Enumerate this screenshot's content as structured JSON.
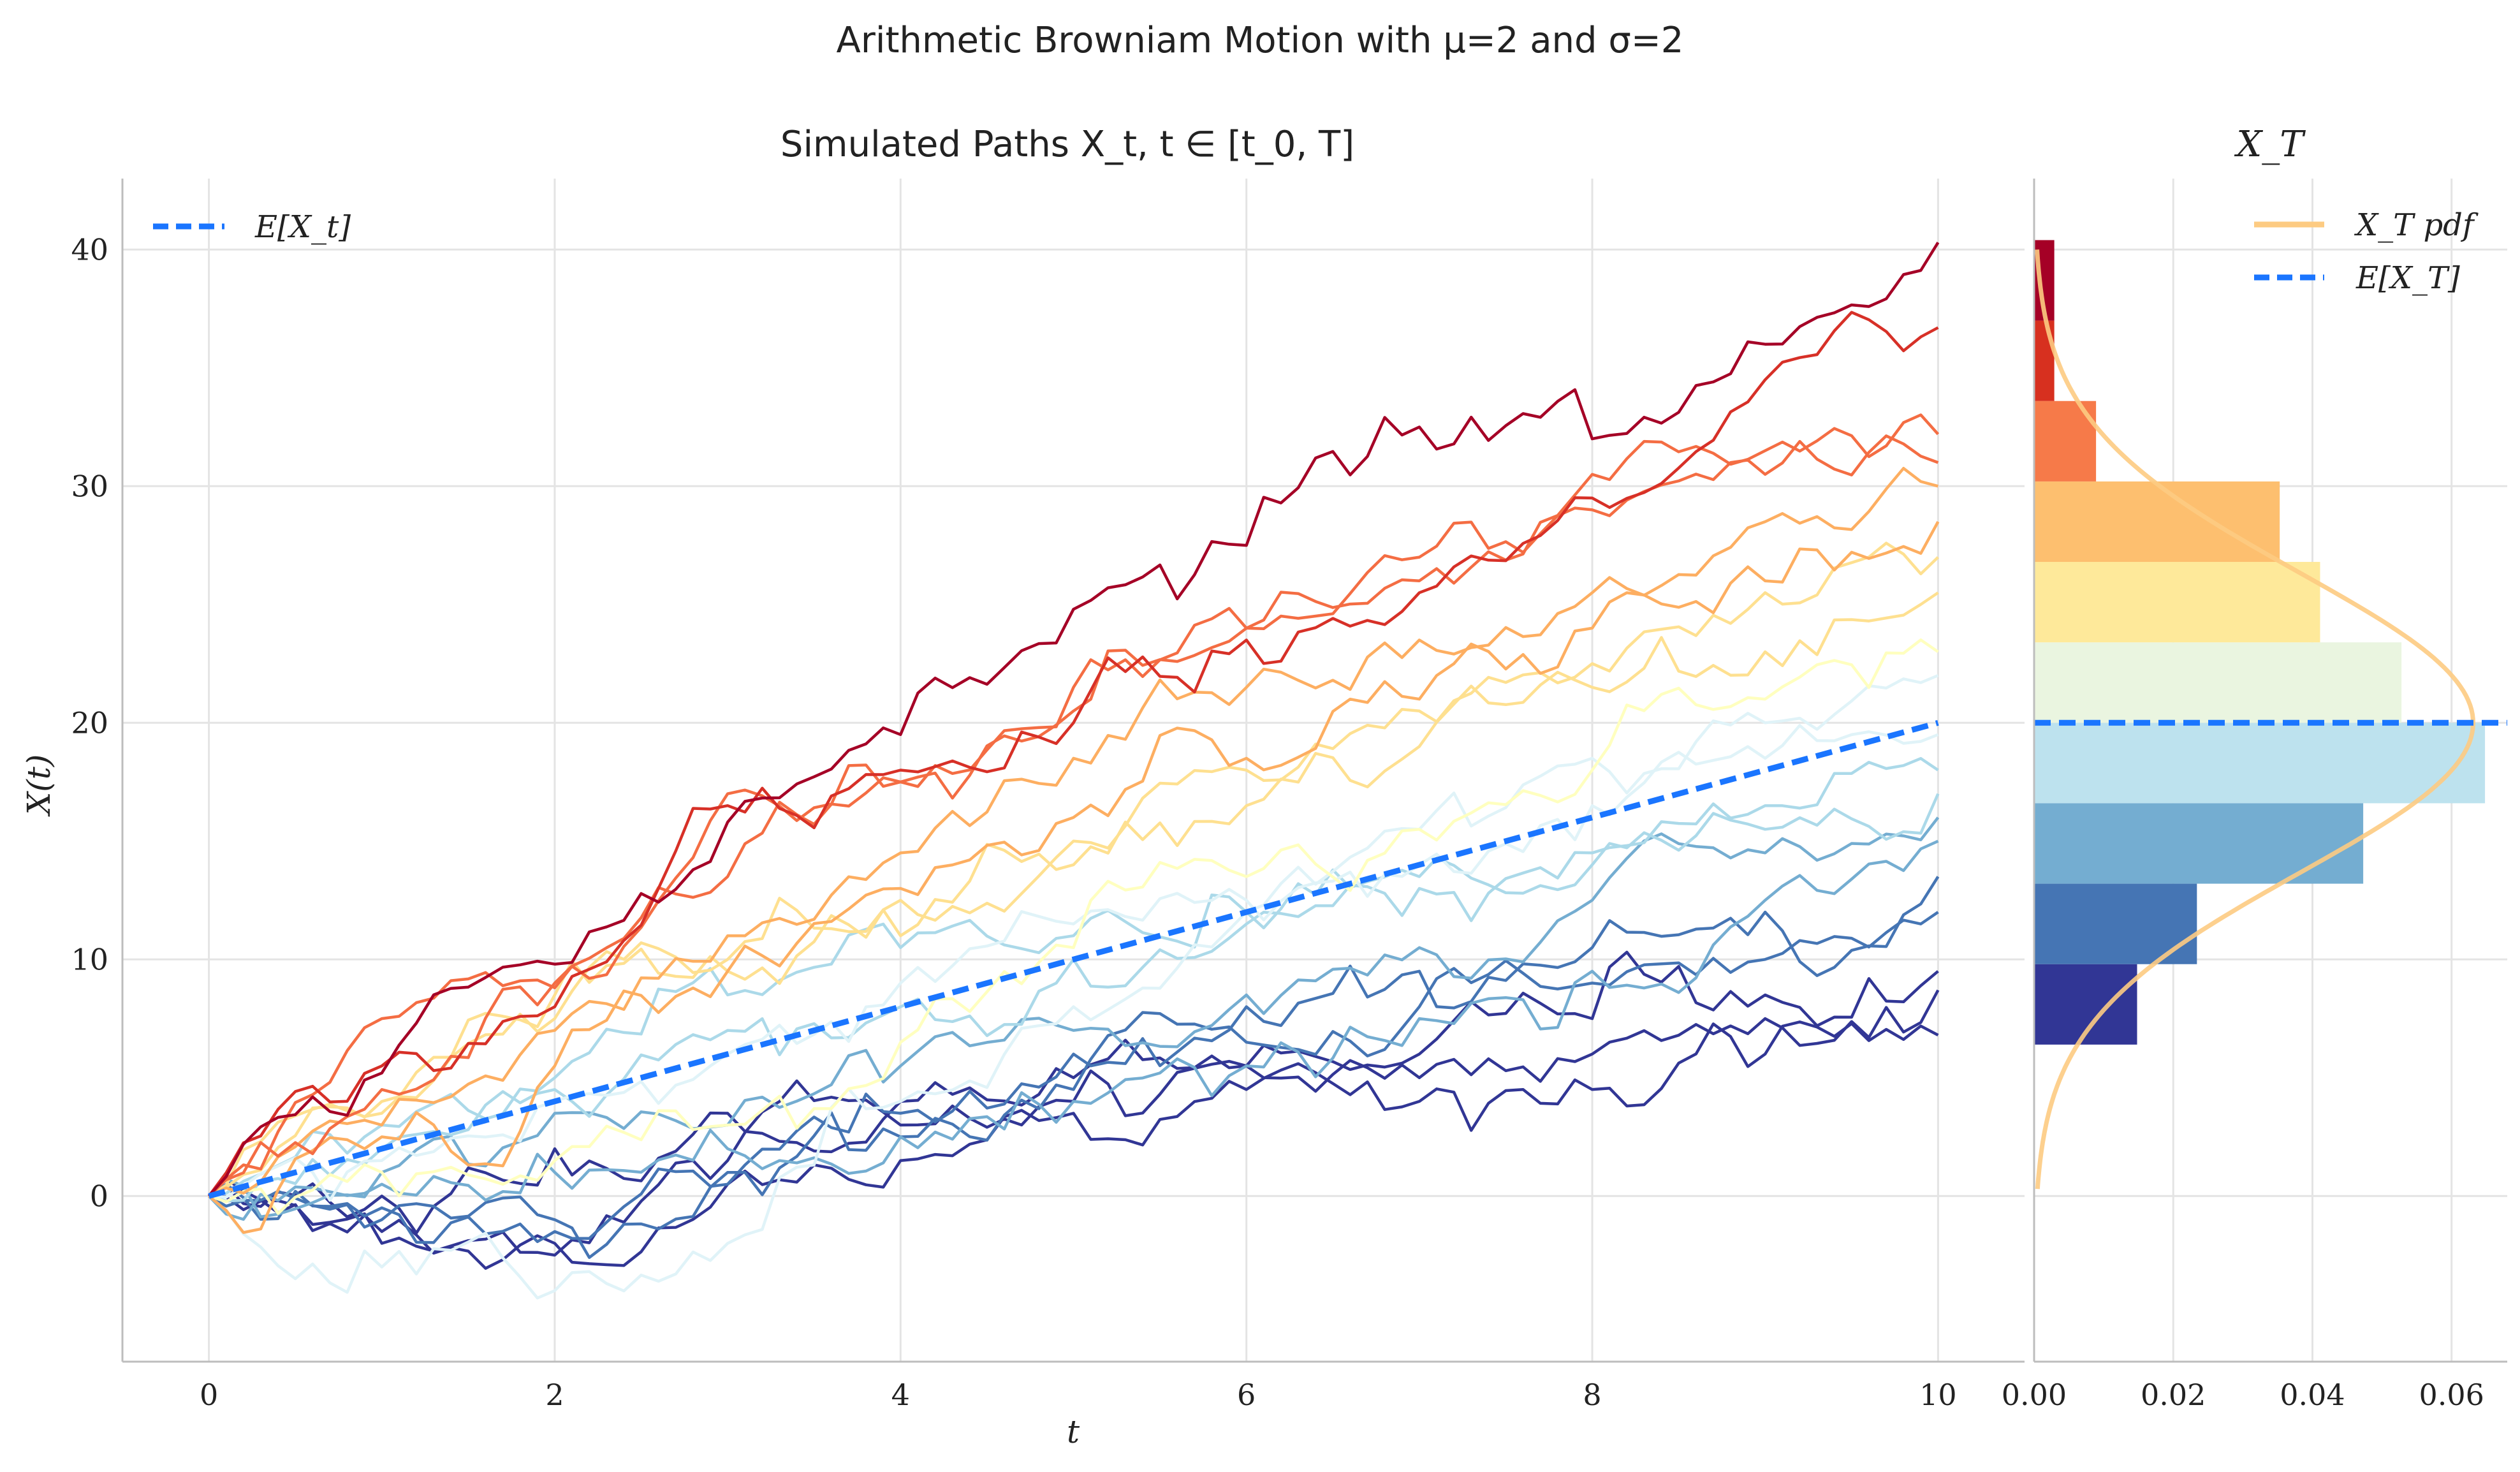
{
  "figure": {
    "suptitle": "Arithmetic Browniam Motion with μ=2 and σ=2",
    "background": "#ffffff",
    "grid_color": "#e4e4e4",
    "spine_color": "#bdbdbd",
    "expectation_color": "#1a75ff",
    "pdf_color": "#fdcb82"
  },
  "chart_data": [
    {
      "type": "line",
      "title": "Simulated Paths X_t, t ∈ [t_0, T]",
      "xlabel": "t",
      "ylabel": "X(t)",
      "xlim": [
        -0.5,
        10.5
      ],
      "ylim": [
        -7,
        43
      ],
      "xticks": [
        0,
        2,
        4,
        6,
        8,
        10
      ],
      "yticks": [
        0,
        10,
        20,
        30,
        40
      ],
      "grid": true,
      "legend_position": "upper-left",
      "legend": [
        {
          "label": "E[X_t]",
          "style": "dashed",
          "color": "#1a75ff"
        }
      ],
      "t_start": 0,
      "t_end": 10,
      "mu": 2,
      "sigma": 2,
      "n_steps": 100,
      "colormap": "RdYlBu (colored by final value X_T: red = high, blue = low)",
      "expected_path": {
        "name": "E[X_t]",
        "x": [
          0,
          10
        ],
        "y": [
          0,
          20
        ]
      },
      "sampled_paths": [
        {
          "x": [
            0,
            1,
            2,
            3,
            4,
            5,
            6,
            7,
            8,
            9,
            10
          ],
          "y": [
            0,
            5.2,
            9.8,
            15.8,
            19.5,
            24.8,
            27.5,
            32.5,
            32.0,
            36.0,
            40.3
          ],
          "color": "#a50026"
        },
        {
          "x": [
            0,
            1,
            2,
            3,
            4,
            5,
            6,
            7,
            8,
            9,
            10
          ],
          "y": [
            0,
            5.5,
            8.0,
            16.5,
            18.0,
            20.0,
            23.5,
            25.5,
            29.5,
            34.5,
            36.7
          ],
          "color": "#d73027"
        },
        {
          "x": [
            0,
            1,
            2,
            3,
            4,
            5,
            6,
            7,
            8,
            9,
            10
          ],
          "y": [
            0,
            7.5,
            8.8,
            17.0,
            17.5,
            20.5,
            24.0,
            26.0,
            30.5,
            31.5,
            32.2
          ],
          "color": "#f46d43"
        },
        {
          "x": [
            0,
            1,
            2,
            3,
            4,
            5,
            6,
            7,
            8,
            9,
            10
          ],
          "y": [
            0,
            4.5,
            9.0,
            13.5,
            17.5,
            21.5,
            24.0,
            27.0,
            29.0,
            30.5,
            31.0
          ],
          "color": "#f46d43"
        },
        {
          "x": [
            0,
            1,
            2,
            3,
            4,
            5,
            6,
            7,
            8,
            9,
            10
          ],
          "y": [
            0,
            3.0,
            7.0,
            11.0,
            14.5,
            18.5,
            21.5,
            23.5,
            25.5,
            28.5,
            30.0
          ],
          "color": "#fdae61"
        },
        {
          "x": [
            0,
            1,
            2,
            3,
            4,
            5,
            6,
            7,
            8,
            9,
            10
          ],
          "y": [
            0,
            2.5,
            5.5,
            9.5,
            13.0,
            16.0,
            18.5,
            21.0,
            24.0,
            26.0,
            28.5
          ],
          "color": "#fdae61"
        },
        {
          "x": [
            0,
            1,
            2,
            3,
            4,
            5,
            6,
            7,
            8,
            9,
            10
          ],
          "y": [
            0,
            4.0,
            7.5,
            10.0,
            12.5,
            15.0,
            18.0,
            20.5,
            22.5,
            25.5,
            27.0
          ],
          "color": "#fee090"
        },
        {
          "x": [
            0,
            1,
            2,
            3,
            4,
            5,
            6,
            7,
            8,
            9,
            10
          ],
          "y": [
            0,
            3.5,
            8.5,
            9.5,
            11.0,
            14.0,
            16.5,
            19.0,
            21.5,
            23.0,
            25.5
          ],
          "color": "#fee090"
        },
        {
          "x": [
            0,
            1,
            2,
            3,
            4,
            5,
            6,
            7,
            8,
            9,
            10
          ],
          "y": [
            0,
            1.0,
            1.5,
            3.0,
            6.5,
            10.5,
            13.5,
            15.5,
            18.0,
            21.0,
            23.0
          ],
          "color": "#ffffbf"
        },
        {
          "x": [
            0,
            1,
            2,
            3,
            4,
            5,
            6,
            7,
            8,
            9,
            10
          ],
          "y": [
            0,
            -3.0,
            -4.0,
            -2.0,
            4.0,
            8.0,
            12.0,
            15.5,
            18.5,
            20.0,
            22.0
          ],
          "color": "#e0f3f8"
        },
        {
          "x": [
            0,
            1,
            2,
            3,
            4,
            5,
            6,
            7,
            8,
            9,
            10
          ],
          "y": [
            0,
            1.5,
            4.0,
            6.0,
            9.0,
            11.5,
            12.5,
            14.0,
            16.5,
            18.5,
            19.5
          ],
          "color": "#e0f3f8"
        },
        {
          "x": [
            0,
            1,
            2,
            3,
            4,
            5,
            6,
            7,
            8,
            9,
            10
          ],
          "y": [
            0,
            2.0,
            4.5,
            7.0,
            8.0,
            10.0,
            11.5,
            13.0,
            14.5,
            16.5,
            18.0
          ],
          "color": "#abd9e9"
        },
        {
          "x": [
            0,
            1,
            2,
            3,
            4,
            5,
            6,
            7,
            8,
            9,
            10
          ],
          "y": [
            0,
            3.0,
            5.0,
            8.5,
            10.5,
            11.0,
            12.0,
            13.5,
            14.0,
            15.5,
            17.0
          ],
          "color": "#abd9e9"
        },
        {
          "x": [
            0,
            1,
            2,
            3,
            4,
            5,
            6,
            7,
            8,
            9,
            10
          ],
          "y": [
            0,
            1.0,
            3.5,
            3.0,
            5.5,
            7.0,
            8.5,
            10.5,
            12.5,
            14.5,
            16.0
          ],
          "color": "#74add1"
        },
        {
          "x": [
            0,
            1,
            2,
            3,
            4,
            5,
            6,
            7,
            8,
            9,
            10
          ],
          "y": [
            0,
            0.5,
            1.0,
            2.0,
            2.5,
            4.0,
            5.5,
            7.5,
            9.5,
            12.5,
            15.0
          ],
          "color": "#74add1"
        },
        {
          "x": [
            0,
            1,
            2,
            3,
            4,
            5,
            6,
            7,
            8,
            9,
            10
          ],
          "y": [
            0,
            -0.5,
            -1.5,
            0.5,
            3.5,
            6.0,
            8.0,
            9.5,
            10.5,
            12.0,
            13.5
          ],
          "color": "#4575b4"
        },
        {
          "x": [
            0,
            1,
            2,
            3,
            4,
            5,
            6,
            7,
            8,
            9,
            10
          ],
          "y": [
            0,
            -1.0,
            -1.0,
            1.0,
            2.5,
            4.5,
            6.5,
            8.0,
            9.0,
            10.0,
            12.0
          ],
          "color": "#4575b4"
        },
        {
          "x": [
            0,
            1,
            2,
            3,
            4,
            5,
            6,
            7,
            8,
            9,
            10
          ],
          "y": [
            0,
            -2.0,
            -2.5,
            1.5,
            3.0,
            4.0,
            5.5,
            6.0,
            7.5,
            8.5,
            9.5
          ],
          "color": "#313695"
        },
        {
          "x": [
            0,
            1,
            2,
            3,
            4,
            5,
            6,
            7,
            8,
            9,
            10
          ],
          "y": [
            0,
            0.0,
            2.0,
            3.5,
            4.0,
            5.0,
            5.5,
            5.0,
            6.0,
            7.5,
            8.7
          ],
          "color": "#313695"
        },
        {
          "x": [
            0,
            1,
            2,
            3,
            4,
            5,
            6,
            7,
            8,
            9,
            10
          ],
          "y": [
            0,
            -1.5,
            -2.0,
            0.5,
            1.5,
            3.5,
            4.5,
            4.0,
            4.5,
            6.0,
            6.8
          ],
          "color": "#313695"
        }
      ]
    },
    {
      "type": "bar",
      "orientation": "horizontal",
      "title": "X_T",
      "xlim": [
        0,
        0.068
      ],
      "ylim": [
        -7,
        43
      ],
      "xticks": [
        0.0,
        0.02,
        0.04,
        0.06
      ],
      "xtick_labels": [
        "0.00",
        "0.02",
        "0.04",
        "0.06"
      ],
      "grid": true,
      "legend_position": "upper-right",
      "legend": [
        {
          "label": "X_T pdf",
          "style": "solid",
          "color": "#fdcb82"
        },
        {
          "label": "E[X_T]",
          "style": "dashed",
          "color": "#1a75ff"
        }
      ],
      "bins": [
        {
          "y0": 6.4,
          "y1": 9.8,
          "density": 0.0148,
          "color": "#313695"
        },
        {
          "y0": 9.8,
          "y1": 13.2,
          "density": 0.0234,
          "color": "#4575b4"
        },
        {
          "y0": 13.2,
          "y1": 16.6,
          "density": 0.0473,
          "color": "#74add1"
        },
        {
          "y0": 16.6,
          "y1": 20.0,
          "density": 0.0648,
          "color": "#bde2ee"
        },
        {
          "y0": 20.0,
          "y1": 23.4,
          "density": 0.0528,
          "color": "#eaf5e0"
        },
        {
          "y0": 23.4,
          "y1": 26.8,
          "density": 0.0411,
          "color": "#fee99a"
        },
        {
          "y0": 26.8,
          "y1": 30.2,
          "density": 0.0353,
          "color": "#fdbf6f"
        },
        {
          "y0": 30.2,
          "y1": 33.6,
          "density": 0.0089,
          "color": "#f67a49"
        },
        {
          "y0": 33.6,
          "y1": 37.0,
          "density": 0.0029,
          "color": "#d7301f"
        },
        {
          "y0": 37.0,
          "y1": 40.4,
          "density": 0.0029,
          "color": "#a50026"
        }
      ],
      "pdf": {
        "distribution": "normal",
        "mean": 20,
        "std": 6.3246,
        "y_range": [
          0.3,
          40.0
        ],
        "peak_density": 0.0631
      },
      "expected_value_line": {
        "name": "E[X_T]",
        "y": 20
      }
    }
  ]
}
